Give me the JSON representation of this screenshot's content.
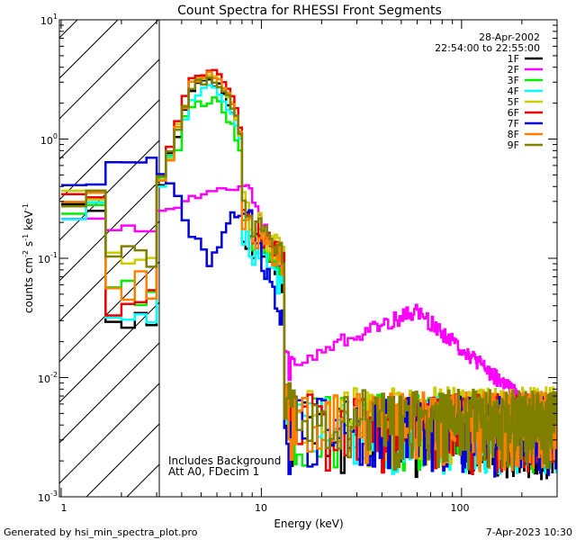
{
  "chart_data": {
    "type": "line",
    "title": "Count Spectra for RHESSI Front Segments",
    "xlabel": "Energy (keV)",
    "ylabel": {
      "part1": "counts cm",
      "exp1": "-2",
      "part2": " s",
      "exp2": "-1",
      "part3": " keV",
      "exp3": "-1"
    },
    "xscale": "log",
    "yscale": "log",
    "xlim": [
      0.98,
      300
    ],
    "ylim": [
      0.001,
      10
    ],
    "x_tick_labels": [
      "1",
      "10",
      "100"
    ],
    "y_tick_labels": [
      {
        "base": "10",
        "exp": "1"
      },
      {
        "base": "10",
        "exp": "0"
      },
      {
        "base": "10",
        "exp": "-1"
      },
      {
        "base": "10",
        "exp": "-2"
      },
      {
        "base": "10",
        "exp": "-3"
      }
    ],
    "date": "28-Apr-2002",
    "time_range": "22:54:00 to 22:55:00",
    "attenuator_region_kev": [
      0.98,
      3.0
    ],
    "annotations": [
      "Includes Background",
      "Att A0, FDecim 1"
    ],
    "legend_placement": "top-right",
    "series": [
      {
        "name": "1F",
        "color": "#000000",
        "peak": 3.0,
        "low": 0.035,
        "drop": 0.07,
        "tail": 0.004
      },
      {
        "name": "2F",
        "color": "#ff00ff",
        "kind": "magenta"
      },
      {
        "name": "3F",
        "color": "#00ee00",
        "peak": 2.1,
        "low": 0.055,
        "drop": 0.08,
        "tail": 0.0045
      },
      {
        "name": "4F",
        "color": "#00ffff",
        "peak": 2.6,
        "low": 0.028,
        "drop": 0.06,
        "tail": 0.0042
      },
      {
        "name": "5F",
        "color": "#cccc00",
        "peak": 3.3,
        "low": 0.09,
        "drop": 0.11,
        "tail": 0.005
      },
      {
        "name": "6F",
        "color": "#ee0000",
        "peak": 3.8,
        "low": 0.045,
        "drop": 0.09,
        "tail": 0.0044
      },
      {
        "name": "7F",
        "color": "#0000dd",
        "kind": "blue"
      },
      {
        "name": "8F",
        "color": "#ff8000",
        "peak": 3.4,
        "low": 0.06,
        "drop": 0.09,
        "tail": 0.0046
      },
      {
        "name": "9F",
        "color": "#808000",
        "peak": 3.2,
        "low": 0.1,
        "drop": 0.1,
        "tail": 0.0048
      }
    ]
  },
  "footer": {
    "left": "Generated by hsi_min_spectra_plot.pro",
    "right": "7-Apr-2023 10:30"
  }
}
